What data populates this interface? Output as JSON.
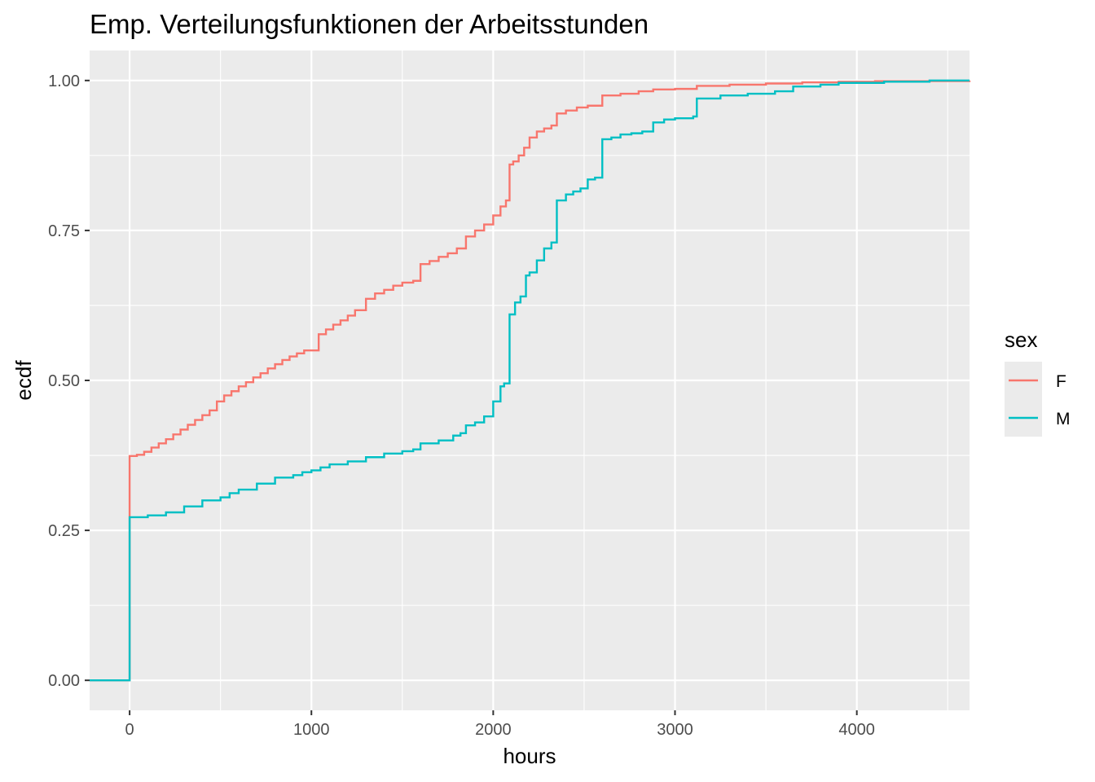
{
  "chart_data": {
    "type": "line",
    "step": true,
    "title": "Emp. Verteilungsfunktionen der Arbeitsstunden",
    "xlabel": "hours",
    "ylabel": "ecdf",
    "xlim": [
      -220,
      4620
    ],
    "ylim": [
      -0.05,
      1.05
    ],
    "x_ticks": [
      0,
      1000,
      2000,
      3000,
      4000
    ],
    "x_tick_labels": [
      "0",
      "1000",
      "2000",
      "3000",
      "4000"
    ],
    "y_ticks": [
      0,
      0.25,
      0.5,
      0.75,
      1
    ],
    "y_tick_labels": [
      "0.00",
      "0.25",
      "0.50",
      "0.75",
      "1.00"
    ],
    "grid": true,
    "panel_background": "#ebebeb",
    "legend": {
      "title": "sex",
      "position": "right"
    },
    "series": [
      {
        "name": "F",
        "color": "#F8766D",
        "x": [
          -220,
          0,
          0,
          40,
          80,
          120,
          160,
          200,
          240,
          280,
          320,
          360,
          400,
          440,
          480,
          520,
          560,
          600,
          640,
          680,
          720,
          760,
          800,
          840,
          880,
          920,
          960,
          1000,
          1040,
          1080,
          1120,
          1160,
          1200,
          1240,
          1300,
          1350,
          1400,
          1450,
          1500,
          1560,
          1600,
          1650,
          1700,
          1750,
          1800,
          1850,
          1900,
          1950,
          2000,
          2040,
          2070,
          2090,
          2110,
          2140,
          2170,
          2200,
          2240,
          2280,
          2320,
          2350,
          2400,
          2460,
          2520,
          2600,
          2700,
          2800,
          2880,
          3000,
          3120,
          3300,
          3500,
          3700,
          3900,
          4100,
          4620
        ],
        "y": [
          0,
          0,
          0.374,
          0.376,
          0.381,
          0.388,
          0.395,
          0.402,
          0.41,
          0.418,
          0.426,
          0.434,
          0.442,
          0.45,
          0.465,
          0.475,
          0.482,
          0.49,
          0.497,
          0.505,
          0.512,
          0.52,
          0.527,
          0.534,
          0.54,
          0.545,
          0.55,
          0.55,
          0.577,
          0.585,
          0.593,
          0.6,
          0.608,
          0.617,
          0.636,
          0.645,
          0.651,
          0.658,
          0.663,
          0.666,
          0.694,
          0.699,
          0.706,
          0.712,
          0.72,
          0.74,
          0.75,
          0.76,
          0.775,
          0.79,
          0.8,
          0.86,
          0.865,
          0.875,
          0.888,
          0.905,
          0.915,
          0.92,
          0.925,
          0.945,
          0.95,
          0.955,
          0.958,
          0.975,
          0.978,
          0.982,
          0.985,
          0.986,
          0.991,
          0.993,
          0.995,
          0.997,
          0.998,
          0.999,
          1.0
        ]
      },
      {
        "name": "M",
        "color": "#00BFC4",
        "x": [
          -220,
          0,
          0,
          100,
          200,
          300,
          400,
          500,
          550,
          600,
          700,
          800,
          900,
          950,
          1000,
          1050,
          1100,
          1200,
          1300,
          1400,
          1500,
          1560,
          1600,
          1700,
          1780,
          1820,
          1850,
          1900,
          1950,
          2000,
          2040,
          2060,
          2090,
          2120,
          2150,
          2180,
          2200,
          2240,
          2280,
          2320,
          2350,
          2400,
          2440,
          2480,
          2520,
          2560,
          2600,
          2650,
          2700,
          2760,
          2820,
          2880,
          2940,
          3000,
          3100,
          3120,
          3250,
          3400,
          3550,
          3650,
          3800,
          3900,
          4150,
          4400,
          4620
        ],
        "y": [
          0,
          0,
          0.272,
          0.275,
          0.28,
          0.29,
          0.3,
          0.305,
          0.312,
          0.318,
          0.328,
          0.338,
          0.342,
          0.347,
          0.35,
          0.355,
          0.36,
          0.365,
          0.372,
          0.378,
          0.382,
          0.385,
          0.395,
          0.4,
          0.408,
          0.412,
          0.425,
          0.43,
          0.44,
          0.465,
          0.49,
          0.495,
          0.61,
          0.63,
          0.64,
          0.675,
          0.68,
          0.7,
          0.72,
          0.73,
          0.8,
          0.81,
          0.815,
          0.82,
          0.835,
          0.838,
          0.902,
          0.905,
          0.91,
          0.912,
          0.915,
          0.93,
          0.935,
          0.937,
          0.94,
          0.97,
          0.975,
          0.978,
          0.982,
          0.99,
          0.993,
          0.996,
          0.998,
          1.0,
          1.0
        ]
      }
    ]
  }
}
